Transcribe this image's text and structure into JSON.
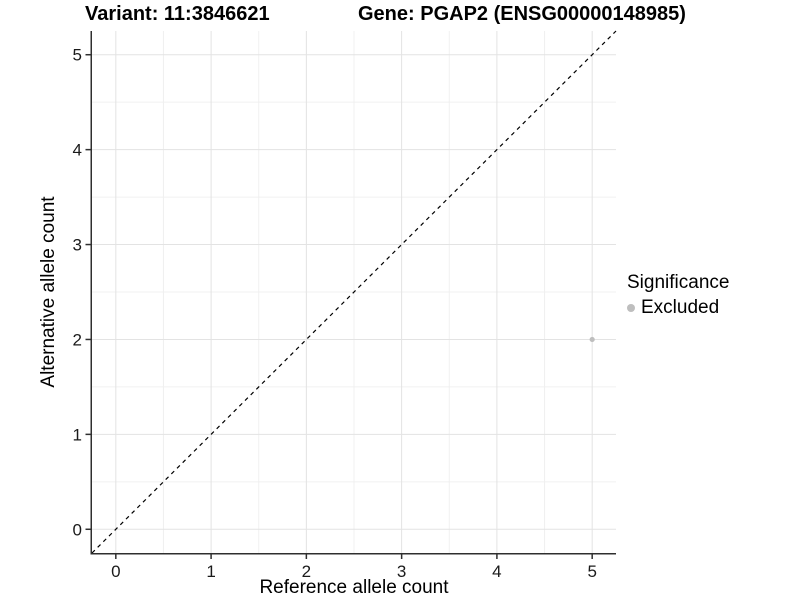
{
  "titles": {
    "variant": "Variant: 11:3846621",
    "gene": "Gene: PGAP2 (ENSG00000148985)"
  },
  "chart_data": {
    "type": "scatter",
    "title": "Variant: 11:3846621    Gene: PGAP2 (ENSG00000148985)",
    "xlabel": "Reference allele count",
    "ylabel": "Alternative allele count",
    "xlim": [
      -0.25,
      5.25
    ],
    "ylim": [
      -0.25,
      5.25
    ],
    "x_ticks": [
      0,
      1,
      2,
      3,
      4,
      5
    ],
    "y_ticks": [
      0,
      1,
      2,
      3,
      4,
      5
    ],
    "x_minor_ticks": [
      0.5,
      1.5,
      2.5,
      3.5,
      4.5
    ],
    "y_minor_ticks": [
      0.5,
      1.5,
      2.5,
      3.5,
      4.5
    ],
    "grid": true,
    "identity_line": {
      "style": "dashed",
      "color": "#000000",
      "from": [
        -0.25,
        -0.25
      ],
      "to": [
        5.25,
        5.25
      ]
    },
    "series": [
      {
        "name": "Excluded",
        "color": "#bebebe",
        "point_radius": 2.6,
        "points": [
          {
            "x": 5,
            "y": 2
          }
        ]
      }
    ],
    "legend": {
      "title": "Significance",
      "position": "right",
      "items": [
        {
          "label": "Excluded",
          "color": "#bebebe"
        }
      ]
    },
    "colors": {
      "background": "#ffffff",
      "grid_major": "#e3e3e3",
      "grid_minor": "#f0f0f0",
      "axis_line": "#2f2f2f",
      "tick_label": "#1a1a1a"
    }
  }
}
